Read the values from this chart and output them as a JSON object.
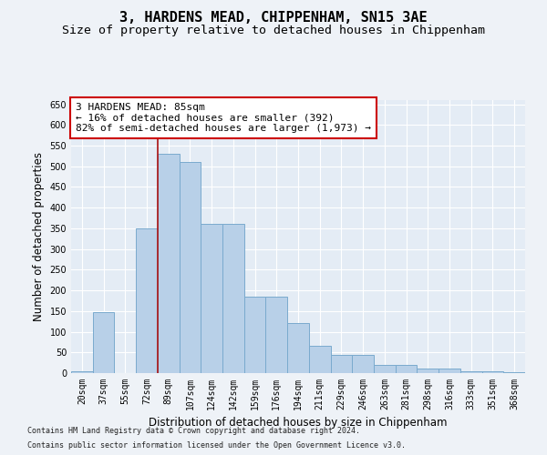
{
  "title": "3, HARDENS MEAD, CHIPPENHAM, SN15 3AE",
  "subtitle": "Size of property relative to detached houses in Chippenham",
  "xlabel": "Distribution of detached houses by size in Chippenham",
  "ylabel": "Number of detached properties",
  "categories": [
    "20sqm",
    "37sqm",
    "55sqm",
    "72sqm",
    "89sqm",
    "107sqm",
    "124sqm",
    "142sqm",
    "159sqm",
    "176sqm",
    "194sqm",
    "211sqm",
    "229sqm",
    "246sqm",
    "263sqm",
    "281sqm",
    "298sqm",
    "316sqm",
    "333sqm",
    "351sqm",
    "368sqm"
  ],
  "values": [
    5,
    148,
    0,
    350,
    530,
    510,
    360,
    360,
    185,
    185,
    120,
    65,
    45,
    45,
    20,
    20,
    10,
    10,
    5,
    5,
    2
  ],
  "bar_color": "#b8d0e8",
  "bar_edge_color": "#7aaace",
  "vline_color": "#aa1111",
  "vline_x_idx": 3.5,
  "annotation_text": "3 HARDENS MEAD: 85sqm\n← 16% of detached houses are smaller (392)\n82% of semi-detached houses are larger (1,973) →",
  "annotation_box_facecolor": "#ffffff",
  "annotation_box_edgecolor": "#cc0000",
  "ylim": [
    0,
    660
  ],
  "yticks": [
    0,
    50,
    100,
    150,
    200,
    250,
    300,
    350,
    400,
    450,
    500,
    550,
    600,
    650
  ],
  "bg_color": "#eef2f7",
  "plot_bg_color": "#e4ecf5",
  "grid_color": "#ffffff",
  "title_fontsize": 11,
  "subtitle_fontsize": 9.5,
  "axis_label_fontsize": 8.5,
  "tick_fontsize": 7,
  "annotation_fontsize": 8,
  "footer_fontsize": 6,
  "footer1": "Contains HM Land Registry data © Crown copyright and database right 2024.",
  "footer2": "Contains public sector information licensed under the Open Government Licence v3.0."
}
